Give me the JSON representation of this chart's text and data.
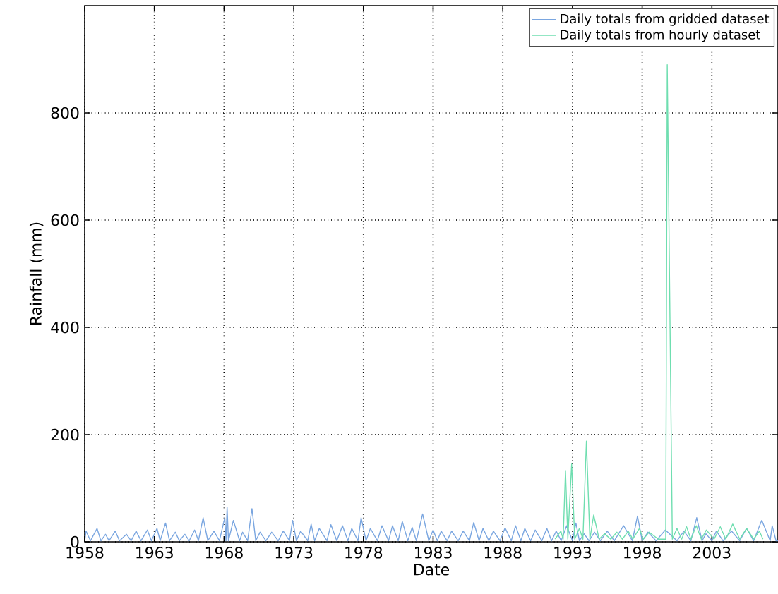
{
  "chart_data": {
    "type": "line",
    "xlabel": "Date",
    "ylabel": "Rainfall (mm)",
    "xlim": [
      "1958-01-01",
      "2007-10-01"
    ],
    "ylim": [
      0,
      1000
    ],
    "xticks": [
      "1958",
      "1963",
      "1968",
      "1973",
      "1978",
      "1983",
      "1988",
      "1993",
      "1998",
      "2003"
    ],
    "yticks": [
      0,
      200,
      400,
      600,
      800
    ],
    "grid": true,
    "legend": "top right",
    "line_style": "solid",
    "marker": "none",
    "series": [
      {
        "name": "Daily totals from gridded dataset",
        "color": "#7aa6e0",
        "x": [
          "1958-01-01",
          "1958-02-05",
          "1958-06-01",
          "1958-11-20",
          "1959-03-01",
          "1959-07-01",
          "1959-10-01",
          "1960-03-10",
          "1960-07-01",
          "1961-01-01",
          "1961-05-01",
          "1961-09-10",
          "1962-01-15",
          "1962-07-01",
          "1962-10-15",
          "1963-03-10",
          "1963-06-01",
          "1963-10-20",
          "1964-02-01",
          "1964-07-01",
          "1964-10-15",
          "1965-03-10",
          "1965-07-01",
          "1965-11-20",
          "1966-03-01",
          "1966-07-01",
          "1966-11-01",
          "1967-04-10",
          "1967-09-01",
          "1968-01-20",
          "1968-02-20",
          "1968-03-20",
          "1968-04-25",
          "1968-09-01",
          "1969-02-10",
          "1969-05-01",
          "1969-09-10",
          "1970-01-01",
          "1970-04-10",
          "1970-08-01",
          "1971-01-01",
          "1971-06-01",
          "1971-11-20",
          "1972-04-01",
          "1972-09-10",
          "1972-12-01",
          "1973-03-10",
          "1973-07-01",
          "1974-01-01",
          "1974-04-01",
          "1974-07-01",
          "1974-11-01",
          "1975-05-20",
          "1975-09-01",
          "1976-02-01",
          "1976-07-01",
          "1976-11-20",
          "1977-03-01",
          "1977-08-10",
          "1977-11-01",
          "1978-03-10",
          "1978-07-01",
          "1979-01-01",
          "1979-05-01",
          "1979-10-20",
          "1980-02-01",
          "1980-07-01",
          "1980-10-15",
          "1981-03-10",
          "1981-07-01",
          "1981-10-20",
          "1982-04-01",
          "1982-09-10",
          "1983-01-01",
          "1983-04-20",
          "1983-08-01",
          "1984-01-01",
          "1984-05-01",
          "1984-10-20",
          "1985-03-01",
          "1985-08-10",
          "1985-12-01",
          "1986-04-20",
          "1986-08-01",
          "1987-01-01",
          "1987-05-01",
          "1987-10-20",
          "1988-03-01",
          "1988-08-10",
          "1988-12-01",
          "1989-04-20",
          "1989-08-01",
          "1990-01-01",
          "1990-05-01",
          "1990-10-20",
          "1991-03-01",
          "1991-07-01",
          "1991-11-01",
          "1992-03-10",
          "1992-08-01",
          "1993-01-01",
          "1993-04-01",
          "1993-07-01",
          "1993-11-01",
          "1994-03-10",
          "1994-08-01",
          "1995-01-01",
          "1995-07-01",
          "1996-01-01",
          "1996-09-01",
          "1997-04-20",
          "1997-09-01",
          "1998-01-01",
          "1998-06-01",
          "1999-01-01",
          "1999-09-01",
          "2000-07-01",
          "2001-01-01",
          "2001-07-01",
          "2001-12-01",
          "2002-04-20",
          "2002-08-01",
          "2003-01-01",
          "2003-05-01",
          "2003-10-20",
          "2004-06-01",
          "2005-01-01",
          "2005-07-01",
          "2006-01-01",
          "2006-08-01",
          "2007-03-10",
          "2007-05-01",
          "2007-08-10",
          "2007-10-01"
        ],
        "values": [
          2,
          20,
          2,
          25,
          2,
          14,
          2,
          20,
          2,
          14,
          2,
          20,
          2,
          22,
          2,
          25,
          2,
          35,
          2,
          18,
          2,
          14,
          2,
          22,
          2,
          45,
          2,
          20,
          2,
          45,
          2,
          65,
          2,
          40,
          2,
          18,
          2,
          62,
          2,
          18,
          2,
          18,
          2,
          20,
          2,
          40,
          2,
          20,
          2,
          33,
          2,
          25,
          2,
          32,
          2,
          30,
          2,
          25,
          2,
          45,
          2,
          25,
          2,
          30,
          2,
          30,
          2,
          38,
          2,
          27,
          2,
          52,
          2,
          22,
          2,
          20,
          2,
          20,
          2,
          20,
          2,
          36,
          2,
          25,
          2,
          20,
          2,
          26,
          2,
          30,
          2,
          25,
          2,
          22,
          2,
          25,
          2,
          20,
          2,
          30,
          2,
          35,
          2,
          15,
          2,
          18,
          2,
          20,
          2,
          30,
          2,
          48,
          2,
          18,
          2,
          22,
          2,
          20,
          2,
          45,
          2,
          15,
          2,
          20,
          2,
          20,
          2,
          25,
          2,
          40,
          2,
          30,
          2,
          2
        ]
      },
      {
        "name": "Daily totals from hourly dataset",
        "color": "#6fdeb0",
        "x": [
          "1991-10-01",
          "1992-03-01",
          "1992-05-01",
          "1992-07-01",
          "1992-09-01",
          "1992-12-10",
          "1993-03-01",
          "1993-07-01",
          "1993-10-01",
          "1994-01-01",
          "1994-04-01",
          "1994-07-10",
          "1994-12-01",
          "1995-04-20",
          "1995-10-01",
          "1996-03-10",
          "1996-08-01",
          "1997-01-01",
          "1997-05-01",
          "1997-10-20",
          "1998-02-01",
          "1998-07-01",
          "1999-03-01",
          "1999-09-10",
          "1999-10-20",
          "2000-03-01",
          "2000-07-01",
          "2000-11-01",
          "2001-03-10",
          "2001-07-01",
          "2001-11-20",
          "2002-04-01",
          "2002-08-10",
          "2003-03-01",
          "2003-08-10",
          "2004-01-01",
          "2004-07-01",
          "2005-01-01",
          "2005-07-01",
          "2006-01-01",
          "2006-06-01",
          "2006-09-01"
        ],
        "values": [
          5,
          20,
          5,
          133,
          5,
          145,
          5,
          25,
          5,
          188,
          5,
          50,
          5,
          15,
          5,
          18,
          5,
          20,
          5,
          25,
          5,
          18,
          5,
          5,
          890,
          5,
          25,
          5,
          28,
          5,
          30,
          5,
          22,
          5,
          28,
          5,
          33,
          5,
          25,
          5,
          20,
          5
        ]
      }
    ]
  }
}
